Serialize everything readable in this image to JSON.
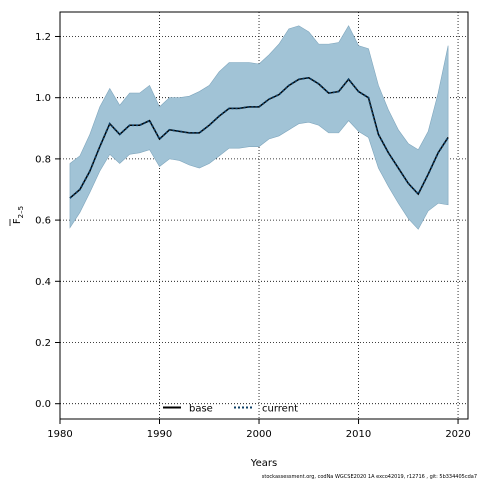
{
  "chart_data": {
    "type": "line",
    "xlabel": "Years",
    "ylabel": "F",
    "ylabel_subscript": "2–5",
    "xlim": [
      1980,
      2021
    ],
    "ylim": [
      -0.05,
      1.28
    ],
    "xticks": [
      1980,
      1990,
      2000,
      2010,
      2020
    ],
    "yticks": [
      0.0,
      0.2,
      0.4,
      0.6,
      0.8,
      1.0,
      1.2
    ],
    "ytick_labels": [
      "0.0",
      "0.2",
      "0.4",
      "0.6",
      "0.8",
      "1.0",
      "1.2"
    ],
    "grid": true,
    "legend_position": "bottom-center",
    "x": [
      1981,
      1982,
      1983,
      1984,
      1985,
      1986,
      1987,
      1988,
      1989,
      1990,
      1991,
      1992,
      1993,
      1994,
      1995,
      1996,
      1997,
      1998,
      1999,
      2000,
      2001,
      2002,
      2003,
      2004,
      2005,
      2006,
      2007,
      2008,
      2009,
      2010,
      2011,
      2012,
      2013,
      2014,
      2015,
      2016,
      2017,
      2018,
      2019
    ],
    "series": [
      {
        "name": "base",
        "style": "solid",
        "color": "#000000",
        "values": [
          0.672,
          0.7,
          0.76,
          0.84,
          0.915,
          0.88,
          0.91,
          0.91,
          0.925,
          0.865,
          0.895,
          0.89,
          0.885,
          0.885,
          0.91,
          0.94,
          0.965,
          0.965,
          0.97,
          0.97,
          0.995,
          1.01,
          1.04,
          1.06,
          1.065,
          1.045,
          1.015,
          1.02,
          1.06,
          1.02,
          1.0,
          0.88,
          0.82,
          0.77,
          0.72,
          0.685,
          0.75,
          0.82,
          0.87
        ]
      },
      {
        "name": "current",
        "style": "dotted",
        "color": "#0d3f66",
        "values": [
          0.672,
          0.7,
          0.76,
          0.84,
          0.915,
          0.88,
          0.91,
          0.91,
          0.925,
          0.865,
          0.895,
          0.89,
          0.885,
          0.885,
          0.91,
          0.94,
          0.965,
          0.965,
          0.97,
          0.97,
          0.995,
          1.01,
          1.04,
          1.06,
          1.065,
          1.045,
          1.015,
          1.02,
          1.06,
          1.02,
          1.0,
          0.88,
          0.82,
          0.77,
          0.72,
          0.685,
          0.75,
          0.82,
          0.87
        ]
      }
    ],
    "band": {
      "color": "#a1c3d6",
      "upper": [
        0.785,
        0.81,
        0.88,
        0.97,
        1.03,
        0.975,
        1.015,
        1.015,
        1.04,
        0.97,
        1.0,
        1.0,
        1.005,
        1.02,
        1.04,
        1.085,
        1.115,
        1.115,
        1.115,
        1.11,
        1.14,
        1.175,
        1.225,
        1.235,
        1.215,
        1.175,
        1.175,
        1.18,
        1.235,
        1.17,
        1.16,
        1.04,
        0.96,
        0.895,
        0.85,
        0.83,
        0.89,
        1.015,
        1.17
      ],
      "lower": [
        0.575,
        0.625,
        0.69,
        0.76,
        0.815,
        0.785,
        0.815,
        0.82,
        0.83,
        0.775,
        0.8,
        0.795,
        0.78,
        0.77,
        0.785,
        0.81,
        0.835,
        0.835,
        0.84,
        0.84,
        0.865,
        0.875,
        0.895,
        0.915,
        0.92,
        0.91,
        0.885,
        0.885,
        0.925,
        0.89,
        0.87,
        0.77,
        0.71,
        0.655,
        0.605,
        0.57,
        0.63,
        0.655,
        0.65
      ]
    }
  },
  "legend": {
    "base_label": "base",
    "current_label": "current"
  },
  "caption": "stockassessment.org,  codNa  WGCSE2020  1A  exco42019, r12716 ,  git:  5b334405cda7"
}
